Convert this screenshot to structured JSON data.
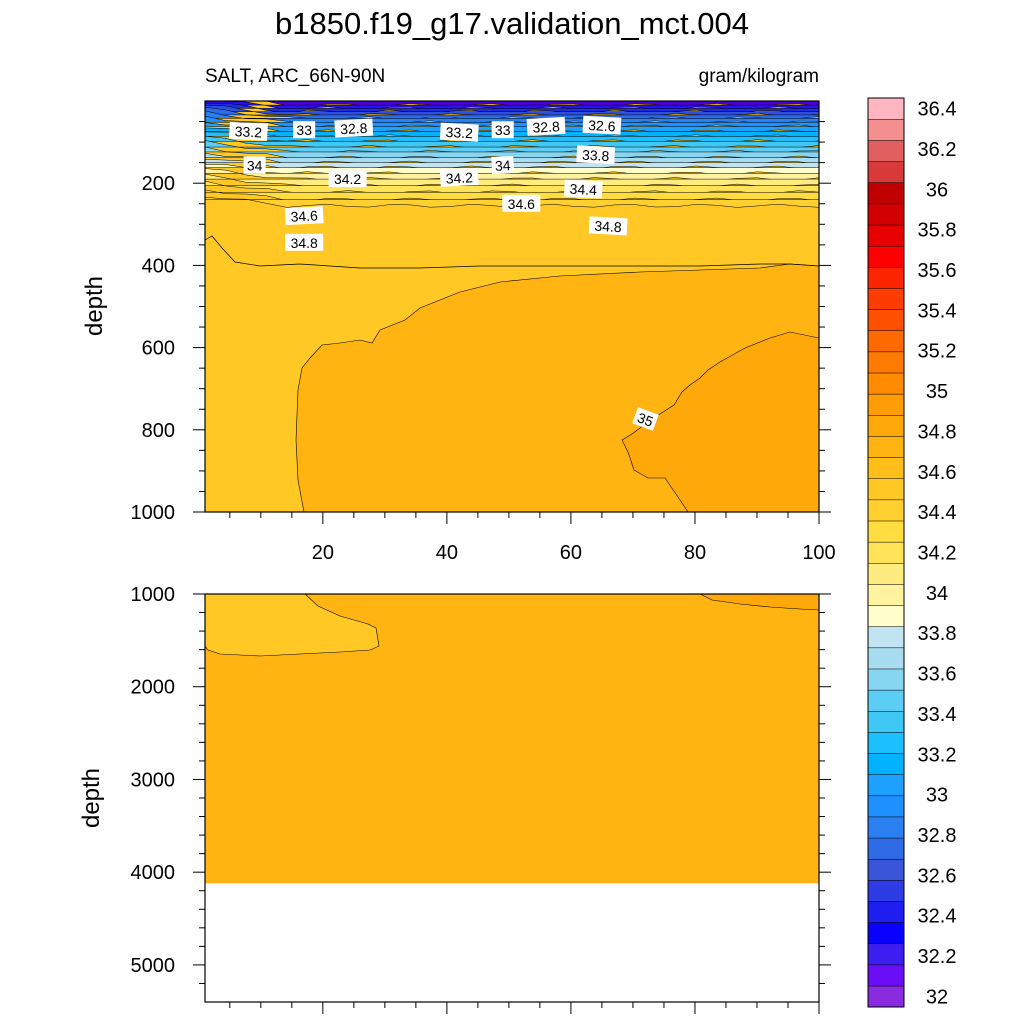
{
  "chart_data": {
    "type": "contour",
    "title": "b1850.f19_g17.validation_mct.004",
    "left_subtitle": "SALT, ARC_66N-90N",
    "right_subtitle": "gram/kilogram",
    "panels": [
      {
        "name": "upper",
        "ylabel": "depth",
        "ylim": [
          0,
          1000
        ],
        "xlim": [
          1,
          100
        ],
        "yticks": [
          "200",
          "400",
          "600",
          "800",
          "1000"
        ],
        "ytick_values": [
          200,
          400,
          600,
          800,
          1000
        ],
        "xticks": [
          "20",
          "40",
          "60",
          "80",
          "100"
        ],
        "xtick_values": [
          20,
          40,
          60,
          80,
          100
        ],
        "contour_labels": [
          "33.2",
          "33",
          "32.8",
          "33.2",
          "33",
          "32.8",
          "32.6",
          "34",
          "34",
          "33.8",
          "34.2",
          "34.2",
          "34.4",
          "34.6",
          "34.6",
          "34.8",
          "34.8",
          "35"
        ],
        "contour_label_positions": [
          [
            8,
            75
          ],
          [
            17,
            71
          ],
          [
            25,
            67
          ],
          [
            42,
            77
          ],
          [
            49,
            71
          ],
          [
            56,
            63
          ],
          [
            65,
            60
          ],
          [
            9,
            157
          ],
          [
            49,
            157
          ],
          [
            64,
            132
          ],
          [
            24,
            190
          ],
          [
            42,
            187
          ],
          [
            62,
            215
          ],
          [
            52,
            250
          ],
          [
            17,
            280
          ],
          [
            66,
            305
          ],
          [
            17,
            345
          ],
          [
            72,
            775
          ]
        ]
      },
      {
        "name": "lower",
        "ylabel": "depth",
        "ylim": [
          1000,
          5400
        ],
        "xlim": [
          1,
          100
        ],
        "yticks": [
          "1000",
          "2000",
          "3000",
          "4000",
          "5000"
        ],
        "ytick_values": [
          1000,
          2000,
          3000,
          4000,
          5000
        ],
        "no_data_below_depth": 4120
      }
    ],
    "colorbar": {
      "labels": [
        "32",
        "32.2",
        "32.4",
        "32.6",
        "32.8",
        "33",
        "33.2",
        "33.4",
        "33.6",
        "33.8",
        "34",
        "34.2",
        "34.4",
        "34.6",
        "34.8",
        "35",
        "35.2",
        "35.4",
        "35.6",
        "35.8",
        "36",
        "36.2",
        "36.4"
      ],
      "colors": [
        "#8a2be2",
        "#6a0ff5",
        "#3c1ff0",
        "#0a00ff",
        "#1e1ef0",
        "#2e3ce6",
        "#3a55d8",
        "#2f6be6",
        "#2a80f0",
        "#1e90ff",
        "#1ea0ff",
        "#00b2ff",
        "#1cbfff",
        "#40c8f5",
        "#5ccdf5",
        "#86d6f2",
        "#a8dcf0",
        "#c2e4f2",
        "#ffffcc",
        "#fff3a0",
        "#ffec80",
        "#ffe45a",
        "#ffdc40",
        "#ffd030",
        "#ffc825",
        "#ffbe1a",
        "#ffb412",
        "#ffa80a",
        "#ff9c06",
        "#ff8c00",
        "#ff7a00",
        "#ff6a00",
        "#ff5000",
        "#ff3c00",
        "#ff2400",
        "#ff0000",
        "#e60000",
        "#d20000",
        "#c00000",
        "#d83a3a",
        "#e06060",
        "#f49090",
        "#ffb6c1"
      ]
    }
  }
}
